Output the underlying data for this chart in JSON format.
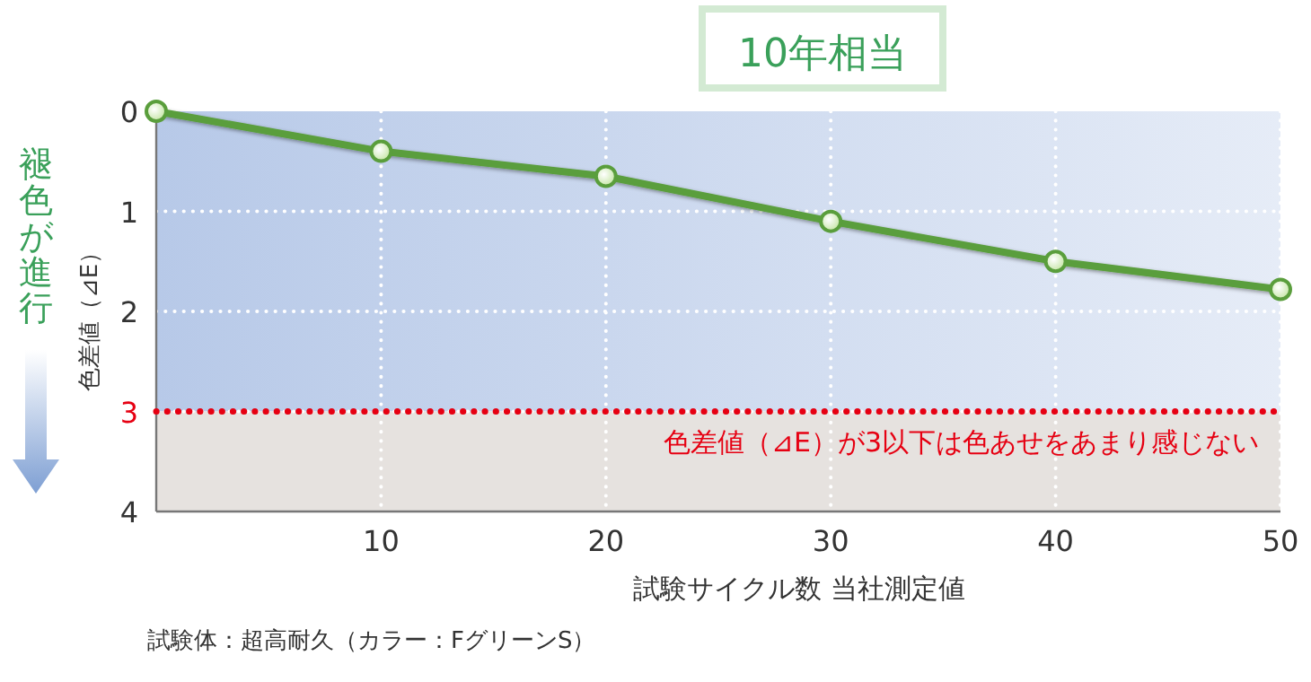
{
  "chart_data": {
    "type": "line",
    "x": [
      0,
      10,
      20,
      30,
      40,
      50
    ],
    "series": [
      {
        "color": "#5a9e3c",
        "values": [
          0,
          0.4,
          0.65,
          1.1,
          1.5,
          1.78
        ]
      }
    ],
    "xlim": [
      0,
      50
    ],
    "xticks": [
      {
        "value": 0,
        "label": null
      },
      10,
      20,
      30,
      40,
      50
    ],
    "ylim": [
      4,
      0
    ],
    "yticks": [
      0,
      1,
      2,
      3,
      4
    ],
    "xlabel": "試験サイクル数 当社測定値",
    "ylabel": "色差値（⊿E）",
    "grid": true,
    "marker": "circle",
    "line_style": "solid",
    "bands": [
      {
        "axis": "y",
        "from": 0,
        "to": 3,
        "color": "#b7c9e8"
      },
      {
        "axis": "y",
        "from": 3,
        "to": 4,
        "color": "#e6e2df"
      }
    ],
    "ref_lines": [
      {
        "axis": "y",
        "value": 3,
        "label": "色差値（⊿E）が3以下は色あせをあまり感じない",
        "color": "#e60012",
        "line_style": "dotted"
      }
    ],
    "annotations": [
      "10年相当",
      "褪色が進行",
      "試験体：超高耐久（カラー：FグリーンS）"
    ]
  }
}
